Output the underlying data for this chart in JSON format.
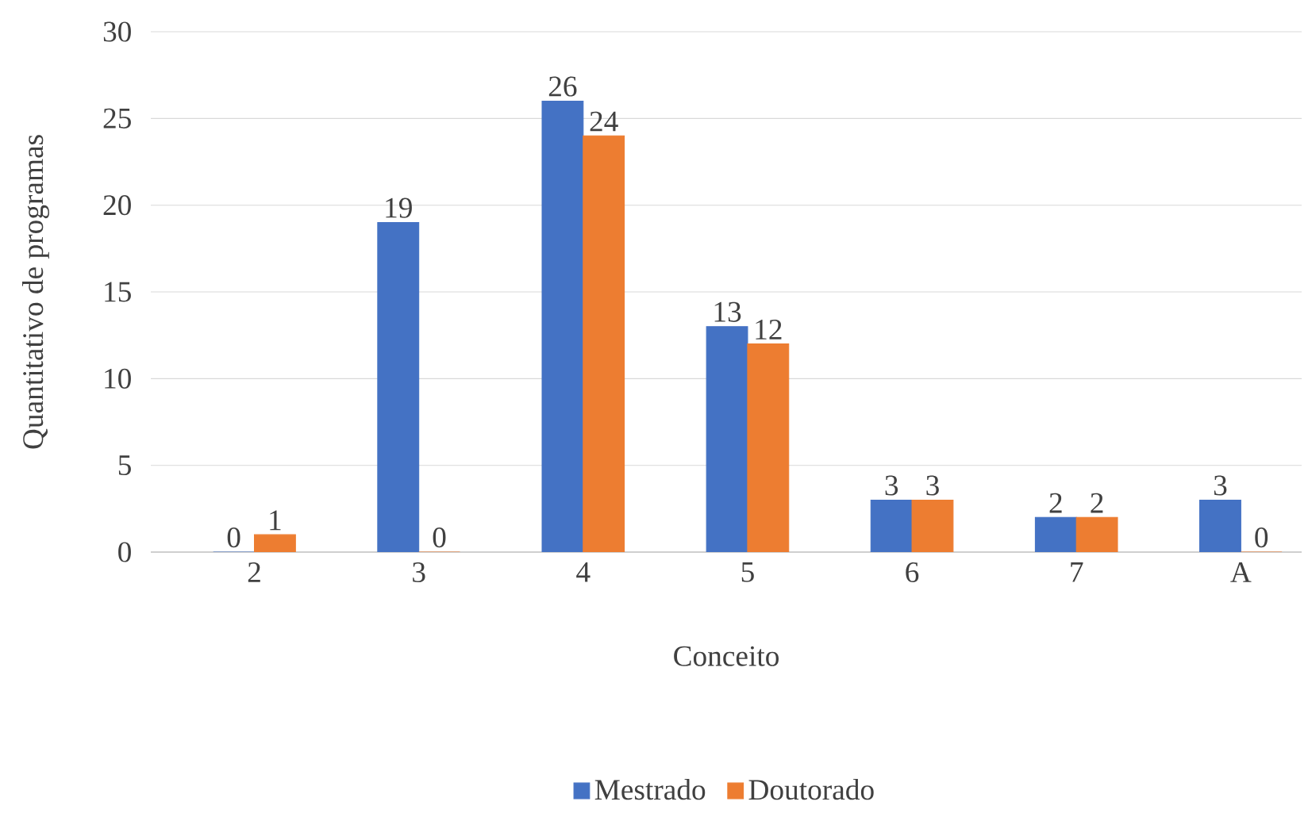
{
  "chart_data": {
    "type": "bar",
    "xlabel": "Conceito",
    "ylabel": "Quantitativo de programas",
    "categories": [
      "2",
      "3",
      "4",
      "5",
      "6",
      "7",
      "A"
    ],
    "series": [
      {
        "name": "Mestrado",
        "color": "#4472c4",
        "values": [
          0,
          19,
          26,
          13,
          3,
          2,
          3
        ]
      },
      {
        "name": "Doutorado",
        "color": "#ed7d31",
        "values": [
          1,
          0,
          24,
          12,
          3,
          2,
          0
        ]
      }
    ],
    "ylim": [
      0,
      30
    ],
    "yticks": [
      0,
      5,
      10,
      15,
      20,
      25,
      30
    ],
    "grid": "y",
    "legend": "bottom",
    "data_labels": true
  }
}
